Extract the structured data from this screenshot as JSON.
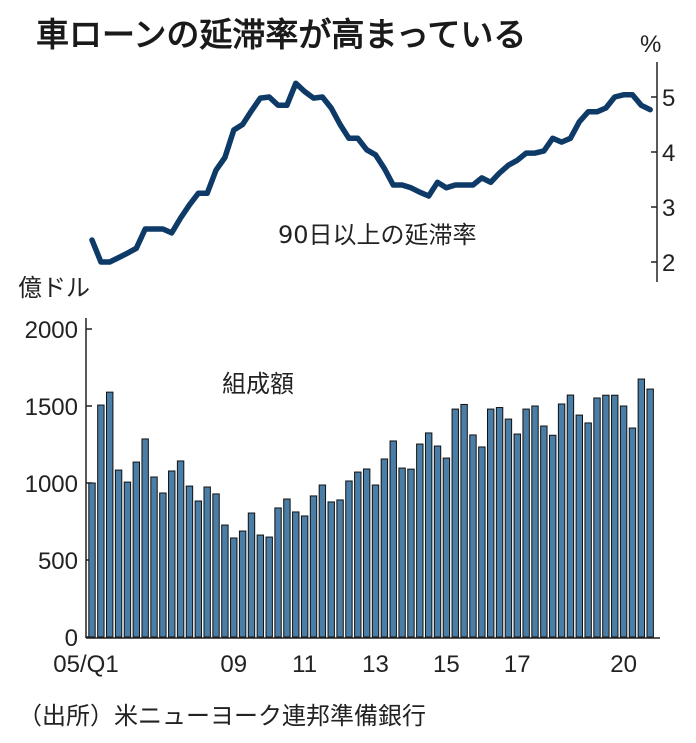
{
  "title": "車ローンの延滞率が高まっている",
  "source": "（出所）米ニューヨーク連邦準備銀行",
  "chart_data": [
    {
      "type": "line",
      "series": [
        {
          "name": "90日以上の延滞率",
          "color": "#0e3a68"
        }
      ],
      "ylabel": "%",
      "ylim": [
        2,
        5.5
      ],
      "yticks": [
        "2",
        "3",
        "4",
        "5"
      ],
      "x_range": [
        "2005Q1",
        "2020Q4"
      ],
      "values": [
        2.4,
        2.0,
        2.0,
        2.08,
        2.16,
        2.25,
        2.6,
        2.6,
        2.6,
        2.53,
        2.8,
        3.04,
        3.25,
        3.25,
        3.67,
        3.9,
        4.4,
        4.5,
        4.75,
        4.98,
        5.0,
        4.85,
        4.85,
        5.25,
        5.1,
        4.98,
        5.0,
        4.8,
        4.5,
        4.25,
        4.25,
        4.04,
        3.95,
        3.7,
        3.4,
        3.4,
        3.35,
        3.27,
        3.2,
        3.45,
        3.35,
        3.4,
        3.4,
        3.4,
        3.53,
        3.45,
        3.62,
        3.76,
        3.85,
        3.98,
        3.98,
        4.02,
        4.25,
        4.18,
        4.25,
        4.55,
        4.73,
        4.73,
        4.8,
        5.0,
        5.04,
        5.04,
        4.85,
        4.77
      ]
    },
    {
      "type": "bar",
      "series": [
        {
          "name": "組成額",
          "color": "#4a7ea6"
        }
      ],
      "ylabel": "億ドル",
      "ylim": [
        0,
        2000
      ],
      "yticks": [
        "0",
        "500",
        "1000",
        "1500",
        "2000"
      ],
      "xticks": [
        {
          "label": "05/Q1",
          "index": 0
        },
        {
          "label": "09",
          "index": 16
        },
        {
          "label": "11",
          "index": 24
        },
        {
          "label": "13",
          "index": 32
        },
        {
          "label": "15",
          "index": 40
        },
        {
          "label": "17",
          "index": 48
        },
        {
          "label": "20",
          "index": 60
        }
      ],
      "values": [
        1000,
        1506,
        1590,
        1084,
        1006,
        1136,
        1286,
        1039,
        935,
        1078,
        1143,
        980,
        883,
        974,
        929,
        727,
        643,
        688,
        805,
        662,
        649,
        838,
        896,
        812,
        786,
        916,
        987,
        877,
        890,
        1013,
        1071,
        1091,
        987,
        1156,
        1273,
        1097,
        1090,
        1253,
        1325,
        1240,
        1162,
        1480,
        1510,
        1312,
        1234,
        1480,
        1490,
        1415,
        1318,
        1480,
        1500,
        1370,
        1310,
        1513,
        1571,
        1441,
        1390,
        1552,
        1570,
        1570,
        1500,
        1357,
        1675,
        1610
      ]
    }
  ]
}
